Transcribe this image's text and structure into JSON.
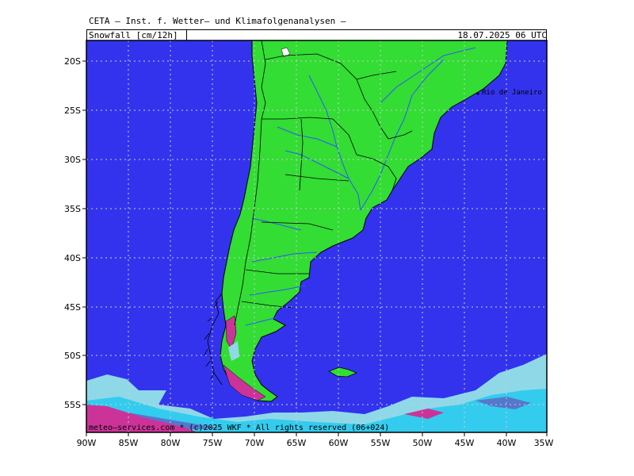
{
  "header": {
    "title": "CETA — Inst. f. Wetter— und Klimafolgenanalysen —",
    "field": "Snowfall [cm/12h]",
    "datetime": "18.07.2025 06 UTC"
  },
  "map": {
    "region": "South America (southern cone)",
    "lat_range": [
      "17S",
      "58S"
    ],
    "lon_range": [
      "90W",
      "35W"
    ],
    "y_ticks": [
      "20S",
      "25S",
      "30S",
      "35S",
      "40S",
      "45S",
      "50S",
      "55S"
    ],
    "x_ticks": [
      "90W",
      "85W",
      "80W",
      "75W",
      "70W",
      "65W",
      "60W",
      "55W",
      "50W",
      "45W",
      "40W",
      "35W"
    ],
    "colors": {
      "ocean": "#3333ee",
      "land": "#33dd33",
      "rivers": "#3355ff",
      "borders": "#000000",
      "snow_light": "#8fd8e8",
      "snow_cyan": "#33ccee",
      "snow_mid": "#5577cc",
      "snow_heavy": "#cc3399",
      "grid": "#cccccc"
    },
    "city_label": "Rio de Janeiro",
    "footer": "meteo—services.com * (c)2025 WKF * All rights reserved (06+024)"
  }
}
